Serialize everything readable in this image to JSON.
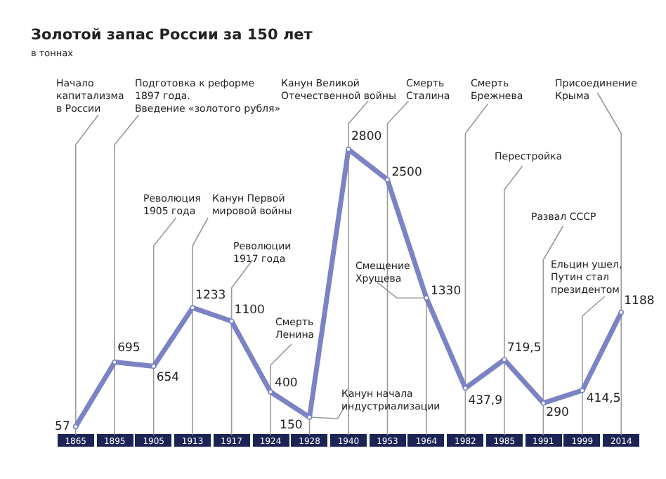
{
  "chart_data": {
    "type": "line",
    "title": "Золотой запас России за 150 лет",
    "subtitle": "в тоннах",
    "categories": [
      "1865",
      "1895",
      "1905",
      "1913",
      "1917",
      "1924",
      "1928",
      "1940",
      "1953",
      "1964",
      "1982",
      "1985",
      "1991",
      "1999",
      "2014"
    ],
    "series": [
      {
        "color": "#7b83c4",
        "values": [
          57,
          695,
          654,
          1233,
          1100,
          400,
          150,
          2800,
          2500,
          1330,
          437.9,
          719.5,
          290,
          414.5,
          1188
        ],
        "value_labels": [
          "57",
          "695",
          "654",
          "1233",
          "1100",
          "400",
          "150",
          "2800",
          "2500",
          "1330",
          "437,9",
          "719,5",
          "290",
          "414,5",
          "1188"
        ]
      }
    ],
    "marker": "circle",
    "line_style": "solid",
    "grid": "x",
    "legend": false,
    "tick_labels": "x",
    "annotations": [
      {
        "text": "Начало\nкапитализма\nв России",
        "x": "1865",
        "y": 57
      },
      {
        "text": "Подготовка к реформе\n1897 года.\nВведение «золотого рубля»",
        "x": "1895",
        "y": 695
      },
      {
        "text": "Революция\n1905 года",
        "x": "1905",
        "y": 654
      },
      {
        "text": "Канун Первой\nмировой войны",
        "x": "1913",
        "y": 1233
      },
      {
        "text": "Революции\n1917 года",
        "x": "1917",
        "y": 1100
      },
      {
        "text": "Смерть\nЛенина",
        "x": "1924",
        "y": 400
      },
      {
        "text": "Канун начала\nиндустриализации",
        "x": "1928",
        "y": 150
      },
      {
        "text": "Канун Великой\nОтечественной войны",
        "x": "1940",
        "y": 2800
      },
      {
        "text": "Смерть\nСталина",
        "x": "1953",
        "y": 2500
      },
      {
        "text": "Смещение\nХрущева",
        "x": "1964",
        "y": 1330
      },
      {
        "text": "Смерть\nБрежнева",
        "x": "1982",
        "y": 437.9
      },
      {
        "text": "Перестройка",
        "x": "1985",
        "y": 719.5
      },
      {
        "text": "Развал СССР",
        "x": "1991",
        "y": 290
      },
      {
        "text": "Ельцин ушел,\nПутин стал\nпрезидентом",
        "x": "1999",
        "y": 414.5
      },
      {
        "text": "Присоединение\nКрыма",
        "x": "2014",
        "y": 1188
      }
    ]
  }
}
